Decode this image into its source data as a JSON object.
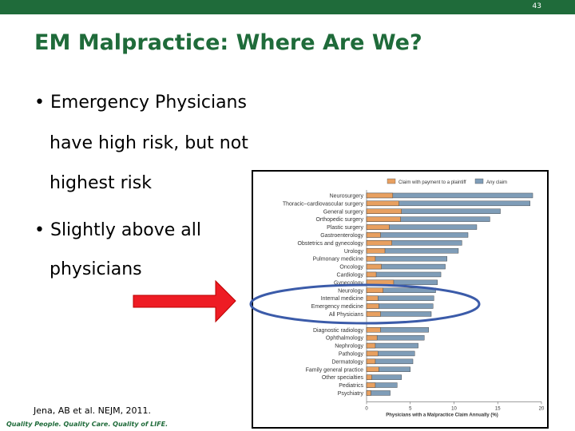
{
  "header": {
    "page_number": "43",
    "title": "EM Malpractice: Where Are We?"
  },
  "bullets": [
    {
      "lines": [
        "Emergency Physicians",
        "have high risk, but not",
        "highest risk"
      ]
    },
    {
      "lines": [
        "Slightly above all",
        "physicians"
      ]
    }
  ],
  "citation": "Jena, AB et al. NEJM, 2011.",
  "footer": "Quality People. Quality Care. Quality of LIFE.",
  "chart_data": {
    "type": "bar",
    "orientation": "horizontal",
    "x_label": "Physicians with a Malpractice Claim Annually (%)",
    "categories": [
      "Neurosurgery",
      "Thoracic–cardiovascular surgery",
      "General surgery",
      "Orthopedic surgery",
      "Plastic surgery",
      "Gastroenterology",
      "Obstetrics and gynecology",
      "Urology",
      "Pulmonary medicine",
      "Oncology",
      "Cardiology",
      "Gynecology",
      "Neurology",
      "Internal medicine",
      "Emergency medicine",
      "All Physicians",
      null,
      "Diagnostic radiology",
      "Ophthalmology",
      "Nephrology",
      "Pathology",
      "Dermatology",
      "Family general practice",
      "Other specialties",
      "Pediatrics",
      "Psychiatry"
    ],
    "series": [
      {
        "name": "Claim with payment to a plaintiff",
        "color": "#e8a060",
        "values": [
          3.0,
          3.7,
          4.0,
          3.9,
          2.6,
          1.6,
          2.9,
          2.1,
          1.0,
          1.7,
          1.1,
          3.1,
          1.9,
          1.3,
          1.4,
          1.6,
          null,
          1.6,
          1.2,
          1.0,
          1.3,
          1.0,
          1.4,
          0.6,
          1.0,
          0.5
        ]
      },
      {
        "name": "Any claim",
        "color": "#7f9db8",
        "values": [
          19.0,
          18.7,
          15.3,
          14.1,
          12.6,
          11.6,
          10.9,
          10.5,
          9.2,
          9.0,
          8.5,
          8.1,
          7.9,
          7.7,
          7.6,
          7.4,
          null,
          7.1,
          6.6,
          5.9,
          5.5,
          5.3,
          5.0,
          4.0,
          3.5,
          2.7
        ]
      }
    ],
    "xlim": [
      0,
      20
    ],
    "xticks": [
      0,
      5,
      10,
      15,
      20
    ],
    "legend": "top-right"
  }
}
